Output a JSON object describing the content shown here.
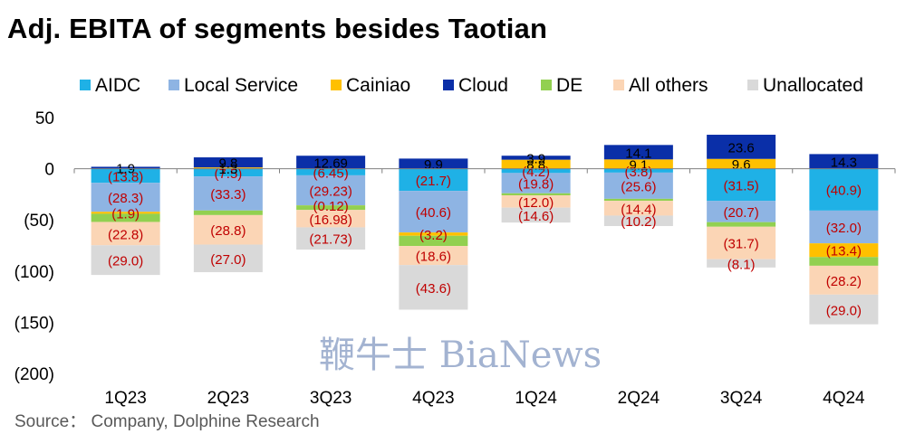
{
  "title": "Adj. EBITA of segments besides Taotian",
  "source": "Source：  Company, Dolphine Research",
  "watermark": "鞭牛士 BiaNews",
  "chart_data": {
    "type": "bar",
    "stacked": true,
    "title": "Adj. EBITA of segments besides Taotian",
    "xlabel": "",
    "ylabel": "",
    "ylim": [
      -200,
      50
    ],
    "yticks": [
      50,
      0,
      -50,
      -100,
      -150,
      -200
    ],
    "ytick_labels": [
      "50",
      "0",
      "(50)",
      "(100)",
      "(150)",
      "(200)"
    ],
    "legend_position": "top",
    "grid": false,
    "categories": [
      "1Q23",
      "2Q23",
      "3Q23",
      "4Q23",
      "1Q24",
      "2Q24",
      "3Q24",
      "4Q24"
    ],
    "series": [
      {
        "name": "AIDC",
        "color": "#1fb1e6",
        "values": [
          -13.8,
          -7.5,
          -6.45,
          -21.7,
          -4.2,
          -3.8,
          -31.5,
          -40.9
        ],
        "labels": [
          "(13.8)",
          "(7.5)",
          "(6.45)",
          "(21.7)",
          "(4.2)",
          "(3.8)",
          "(31.5)",
          "(40.9)"
        ]
      },
      {
        "name": "Local Service",
        "color": "#8eb4e3",
        "values": [
          -28.3,
          -33.3,
          -29.23,
          -40.6,
          -19.8,
          -25.6,
          -20.7,
          -32.0
        ],
        "labels": [
          "(28.3)",
          "(33.3)",
          "(29.23)",
          "(40.6)",
          "(19.8)",
          "(25.6)",
          "(20.7)",
          "(32.0)"
        ]
      },
      {
        "name": "Cainiao",
        "color": "#ffc000",
        "values": [
          -1.9,
          1.3,
          -0.12,
          -3.2,
          8.8,
          9.1,
          9.6,
          -13.4
        ],
        "labels": [
          "(1.9)",
          "1.3",
          "(0.12)",
          "(3.2)",
          "8.8",
          "9.1",
          "9.6",
          "(13.4)"
        ]
      },
      {
        "name": "Cloud",
        "color": "#0a2fa8",
        "values": [
          1.9,
          9.8,
          12.69,
          9.9,
          3.9,
          14.1,
          23.6,
          14.3
        ],
        "labels": [
          "1.9",
          "9.8",
          "12.69",
          "9.9",
          "3.9",
          "14.1",
          "23.6",
          "14.3"
        ]
      },
      {
        "name": "DE",
        "color": "#92d050",
        "values": [
          -8,
          -4.5,
          -4.5,
          -10,
          -2,
          -2,
          -4.5,
          -8.5
        ],
        "labels": [
          "",
          "",
          "",
          "",
          "",
          "",
          "",
          ""
        ]
      },
      {
        "name": "All others",
        "color": "#fbd5b5",
        "values": [
          -22.8,
          -28.8,
          -16.98,
          -18.6,
          -12.0,
          -14.4,
          -31.7,
          -28.2
        ],
        "labels": [
          "(22.8)",
          "(28.8)",
          "(16.98)",
          "(18.6)",
          "(12.0)",
          "(14.4)",
          "(31.7)",
          "(28.2)"
        ]
      },
      {
        "name": "Unallocated",
        "color": "#d9d9d9",
        "values": [
          -29.0,
          -27.0,
          -21.73,
          -43.6,
          -14.6,
          -10.2,
          -8.1,
          -29.0
        ],
        "labels": [
          "(29.0)",
          "(27.0)",
          "(21.73)",
          "(43.6)",
          "(14.6)",
          "(10.2)",
          "(8.1)",
          "(29.0)"
        ]
      }
    ]
  }
}
